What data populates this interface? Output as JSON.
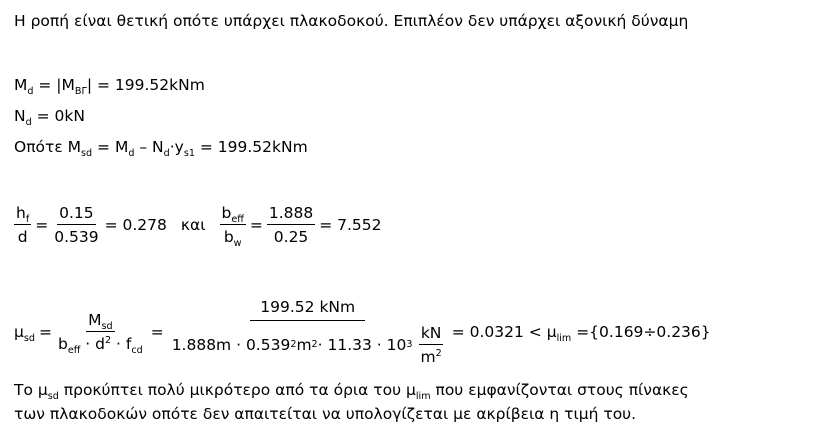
{
  "intro": "Η ροπή είναι θετική οπότε υπάρχει πλακοδοκού. Επιπλέον δεν υπάρχει αξονική δύναμη",
  "md": {
    "sym": "M",
    "sub": "d",
    "rhs_a": " = |M",
    "sub2": "ΒΓ",
    "rhs_b": "| = 199.52kNm"
  },
  "nd": {
    "sym": "N",
    "sub": "d",
    "rhs": " = 0kN"
  },
  "msd": {
    "prefix": "Οπότε M",
    "sub_sd": "sd",
    "eq1": " = M",
    "sub_d": "d",
    "minus": " – N",
    "sub_d2": "d",
    "dot": "·y",
    "sub_s1": "s1",
    "rhs": " = 199.52kNm"
  },
  "ratios": {
    "hf": "h",
    "hf_sub": "f",
    "d": "d",
    "n1": "0.15",
    "d1": "0.539",
    "r1": "= 0.278",
    "kai": "και",
    "beff": "b",
    "beff_sub": "eff",
    "bw": "b",
    "bw_sub": "w",
    "n2": "1.888",
    "d2": "0.25",
    "r2": "= 7.552"
  },
  "mu": {
    "mu": "μ",
    "mu_sub": "sd",
    "num_M": "M",
    "num_sub": "sd",
    "den": "b",
    "den_eff": "eff",
    "den_rest": " · d",
    "den_sq": "2",
    "den_f": " · f",
    "den_cd": "cd",
    "big_num": "199.52 kNm",
    "big_den_a": "1.888m · 0.539",
    "big_den_sq": "2",
    "big_den_b": "m",
    "big_den_sq2": "2",
    "big_den_c": " · 11.33 · 10",
    "big_den_3": "3",
    "kn": "kN",
    "m2": "m",
    "m2_sq": "2",
    "result": "= 0.0321 < μ",
    "lim_sub": "lim",
    "range": " ={0.169÷0.236}"
  },
  "conclusion": {
    "line1_a": "Το μ",
    "line1_sub": "sd",
    "line1_b": " προκύπτει πολύ μικρότερο από τα όρια του μ",
    "line1_sub2": "lim",
    "line1_c": " που εμφανίζονται στους πίνακες",
    "line2": "των πλακοδοκών οπότε δεν απαιτείται να υπολογίζεται με ακρίβεια η τιμή του."
  }
}
